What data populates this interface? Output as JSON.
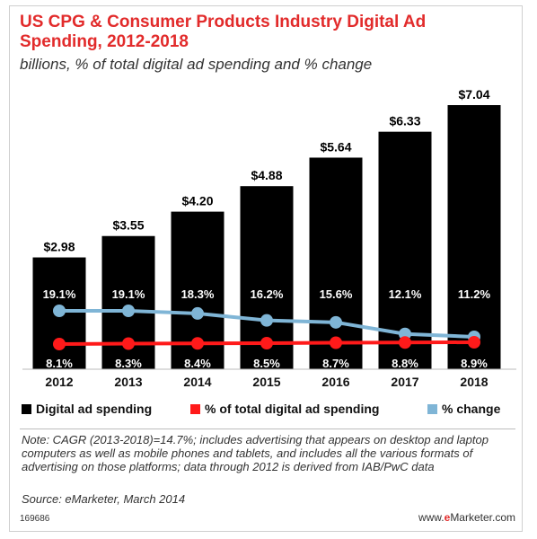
{
  "title": "US CPG & Consumer Products Industry Digital Ad Spending, 2012-2018",
  "subtitle": "billions, % of total digital ad spending and % change",
  "legend": {
    "spending": "Digital ad spending",
    "share": "% of total digital ad spending",
    "change": "% change"
  },
  "note": "Note: CAGR (2013-2018)=14.7%; includes advertising that appears on desktop and laptop computers as well as mobile phones and tablets, and includes all the various formats of advertising on those platforms; data through 2012 is derived from IAB/PwC data",
  "source": "Source: eMarketer, March 2014",
  "footer_id": "169686",
  "brand": {
    "prefix": "www.",
    "em": "e",
    "rest": "Marketer.com"
  },
  "colors": {
    "bar": "#000000",
    "share": "#ff1a1a",
    "change": "#7fb5d6",
    "title": "#e22b2b"
  },
  "chart_data": {
    "type": "bar",
    "categories": [
      "2012",
      "2013",
      "2014",
      "2015",
      "2016",
      "2017",
      "2018"
    ],
    "bar_labels": [
      "$2.98",
      "$3.55",
      "$4.20",
      "$4.88",
      "$5.64",
      "$6.33",
      "$7.04"
    ],
    "change_labels": [
      "19.1%",
      "19.1%",
      "18.3%",
      "16.2%",
      "15.6%",
      "12.1%",
      "11.2%"
    ],
    "share_labels": [
      "8.1%",
      "8.3%",
      "8.4%",
      "8.5%",
      "8.7%",
      "8.8%",
      "8.9%"
    ],
    "series": [
      {
        "name": "Digital ad spending",
        "kind": "bar",
        "values": [
          2.98,
          3.55,
          4.2,
          4.88,
          5.64,
          6.33,
          7.04
        ]
      },
      {
        "name": "% of total digital ad spending",
        "kind": "line",
        "values": [
          8.1,
          8.3,
          8.4,
          8.5,
          8.7,
          8.8,
          8.9
        ]
      },
      {
        "name": "% change",
        "kind": "line",
        "values": [
          19.1,
          19.1,
          18.3,
          16.2,
          15.6,
          12.1,
          11.2
        ]
      }
    ],
    "ylim": [
      0,
      7.04
    ],
    "grid": false,
    "legend_position": "bottom"
  }
}
